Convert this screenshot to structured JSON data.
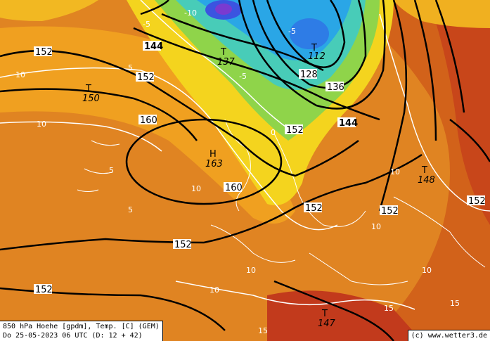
{
  "caption": {
    "line1": "850 hPa Hoehe [gpdm], Temp. [C] (GEM)",
    "line2": "Do 25-05-2023 06 UTC (D: 12 + 42)"
  },
  "credit": "(c) www.wetter3.de",
  "pressure_centers": [
    {
      "symbol": "T",
      "value": "137"
    },
    {
      "symbol": "T",
      "value": "112"
    },
    {
      "symbol": "T",
      "value": "150"
    },
    {
      "symbol": "H",
      "value": "163"
    },
    {
      "symbol": "T",
      "value": "148"
    },
    {
      "symbol": "T",
      "value": "147"
    }
  ],
  "height_labels": [
    "144",
    "152",
    "152",
    "128",
    "136",
    "144",
    "160",
    "152",
    "160",
    "152",
    "152",
    "152",
    "152",
    "152"
  ],
  "temp_labels": [
    "-10",
    "-5",
    "-5",
    "-5",
    "0",
    "5",
    "5",
    "5",
    "10",
    "10",
    "10",
    "10",
    "10",
    "10",
    "10",
    "10",
    "15",
    "15",
    "15"
  ],
  "colors": {
    "orange": "#e28420",
    "deep_orange": "#d2621a",
    "red": "#c23a1c",
    "yellow": "#f0d020",
    "green": "#6cc94e",
    "cyan": "#4fd2d0",
    "blue": "#2aa0e8",
    "purple": "#7a3ad0"
  }
}
